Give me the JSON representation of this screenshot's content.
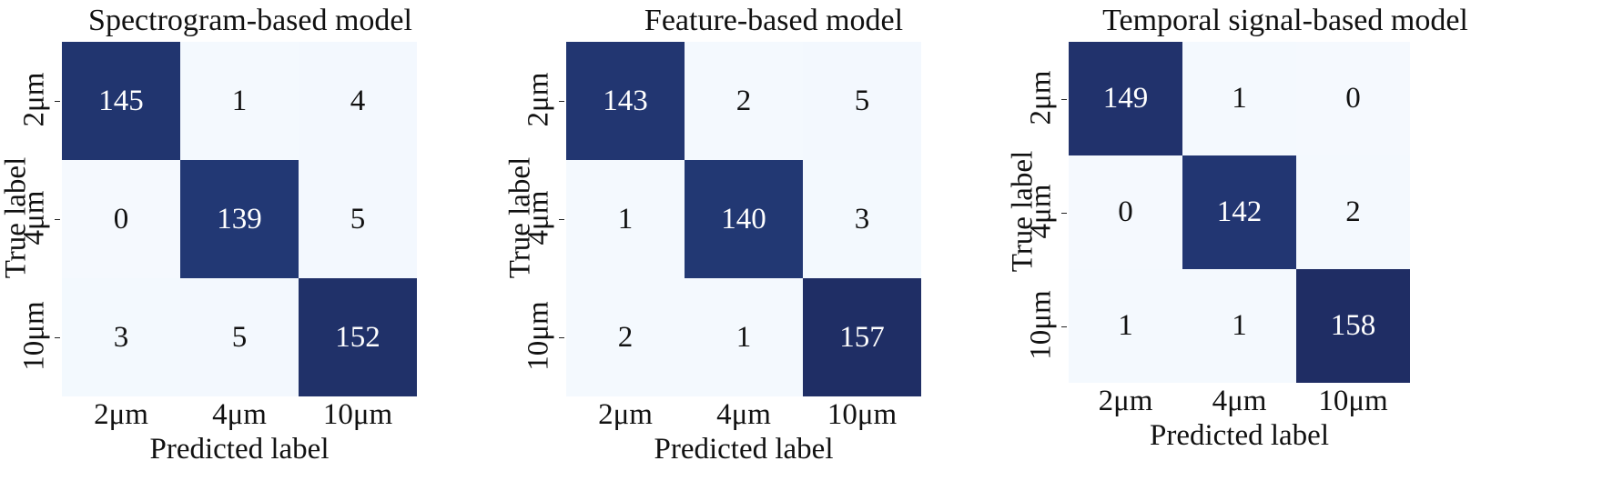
{
  "chart_data": [
    {
      "type": "heatmap",
      "title": "Spectrogram-based model",
      "xlabel": "Predicted label",
      "ylabel": "True label",
      "categories": [
        "2μm",
        "4μm",
        "10μm"
      ],
      "values": [
        [
          145,
          1,
          4
        ],
        [
          0,
          139,
          5
        ],
        [
          3,
          5,
          152
        ]
      ],
      "colormap": "Blues",
      "vmin": 0,
      "vmax": 158
    },
    {
      "type": "heatmap",
      "title": "Feature-based model",
      "xlabel": "Predicted label",
      "ylabel": "True label",
      "categories": [
        "2μm",
        "4μm",
        "10μm"
      ],
      "values": [
        [
          143,
          2,
          5
        ],
        [
          1,
          140,
          3
        ],
        [
          2,
          1,
          157
        ]
      ],
      "colormap": "Blues",
      "vmin": 0,
      "vmax": 158
    },
    {
      "type": "heatmap",
      "title": "Temporal signal-based model",
      "xlabel": "Predicted label",
      "ylabel": "True label",
      "categories": [
        "2μm",
        "4μm",
        "10μm"
      ],
      "values": [
        [
          149,
          1,
          0
        ],
        [
          0,
          142,
          2
        ],
        [
          1,
          1,
          158
        ]
      ],
      "colormap": "Blues",
      "vmin": 0,
      "vmax": 158
    }
  ]
}
